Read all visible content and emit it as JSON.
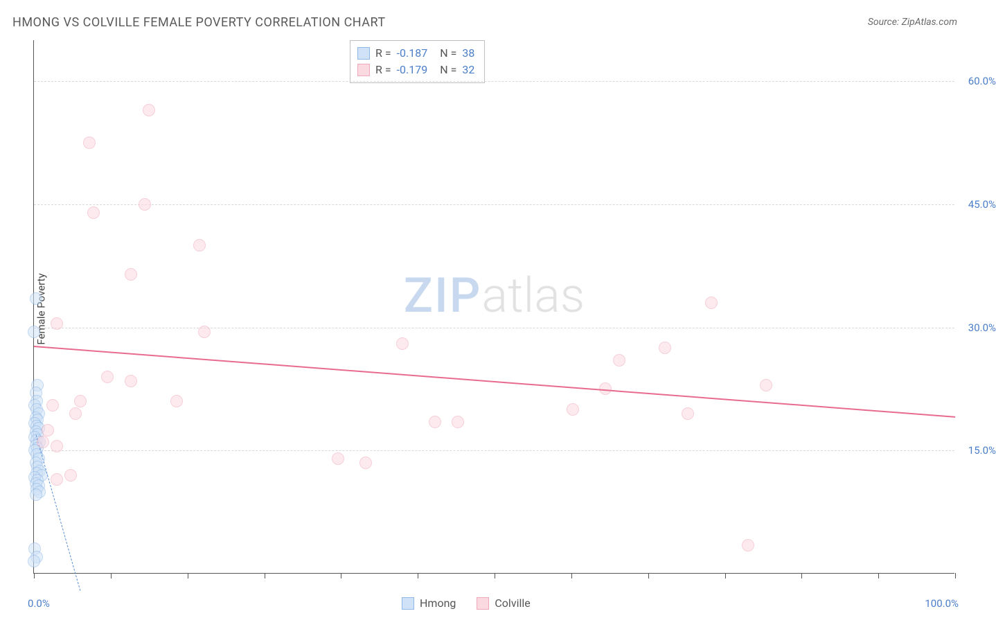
{
  "title": "HMONG VS COLVILLE FEMALE POVERTY CORRELATION CHART",
  "source": "Source: ZipAtlas.com",
  "y_axis_label": "Female Poverty",
  "watermark": {
    "part1": "ZIP",
    "part2": "atlas"
  },
  "chart": {
    "type": "scatter",
    "background_color": "#ffffff",
    "grid_color": "#d8d8d8",
    "axis_color": "#555555",
    "label_color": "#4a7ec9",
    "title_color": "#5a5a5a",
    "title_fontsize": 18,
    "label_fontsize": 15,
    "xlim": [
      0,
      100
    ],
    "ylim": [
      0,
      65
    ],
    "x_ticks": [
      0,
      8.33,
      16.67,
      25,
      33.33,
      41.67,
      50,
      58.33,
      66.67,
      75,
      83.33,
      91.67,
      100
    ],
    "x_tick_labels": {
      "min": "0.0%",
      "max": "100.0%"
    },
    "y_gridlines": [
      15,
      30,
      45,
      60
    ],
    "y_tick_labels": [
      "15.0%",
      "30.0%",
      "45.0%",
      "60.0%"
    ],
    "marker_radius": 9,
    "marker_border_width": 1.5,
    "series": [
      {
        "name": "Hmong",
        "fill": "#cfe2f7",
        "stroke": "#8fb8e6",
        "fill_opacity": 0.55,
        "R": "-0.187",
        "N": "38",
        "trend": {
          "x1": 0.2,
          "y1": 17.0,
          "x2": 5.0,
          "y2": -2.0,
          "color": "#5b8fd1",
          "dash": true,
          "width": 1.5
        },
        "points": [
          [
            0.2,
            33.5
          ],
          [
            0.0,
            29.5
          ],
          [
            0.4,
            23.0
          ],
          [
            0.2,
            22.0
          ],
          [
            0.3,
            21.0
          ],
          [
            0.1,
            20.5
          ],
          [
            0.3,
            20.0
          ],
          [
            0.5,
            19.5
          ],
          [
            0.2,
            19.0
          ],
          [
            0.4,
            18.7
          ],
          [
            0.1,
            18.3
          ],
          [
            0.3,
            18.0
          ],
          [
            0.5,
            17.7
          ],
          [
            0.2,
            17.3
          ],
          [
            0.4,
            17.0
          ],
          [
            0.1,
            16.6
          ],
          [
            0.3,
            16.3
          ],
          [
            0.6,
            16.0
          ],
          [
            0.2,
            15.6
          ],
          [
            0.4,
            15.3
          ],
          [
            0.1,
            15.0
          ],
          [
            0.3,
            14.5
          ],
          [
            0.5,
            14.0
          ],
          [
            0.2,
            13.5
          ],
          [
            0.4,
            13.0
          ],
          [
            0.6,
            12.5
          ],
          [
            0.3,
            12.2
          ],
          [
            0.8,
            12.0
          ],
          [
            0.1,
            11.7
          ],
          [
            0.4,
            11.4
          ],
          [
            0.2,
            11.0
          ],
          [
            0.5,
            10.7
          ],
          [
            0.3,
            10.3
          ],
          [
            0.6,
            10.0
          ],
          [
            0.2,
            9.6
          ],
          [
            0.1,
            3.0
          ],
          [
            0.3,
            2.0
          ],
          [
            0.0,
            1.5
          ]
        ]
      },
      {
        "name": "Colville",
        "fill": "#fad9e1",
        "stroke": "#f0a8ba",
        "fill_opacity": 0.55,
        "R": "-0.179",
        "N": "32",
        "trend": {
          "x1": 0,
          "y1": 27.8,
          "x2": 100,
          "y2": 19.2,
          "color": "#e86b8f",
          "dash": false,
          "width": 2
        },
        "points": [
          [
            12.5,
            56.5
          ],
          [
            6.0,
            52.5
          ],
          [
            12.0,
            45.0
          ],
          [
            6.5,
            44.0
          ],
          [
            18.0,
            40.0
          ],
          [
            10.5,
            36.5
          ],
          [
            73.5,
            33.0
          ],
          [
            2.5,
            30.5
          ],
          [
            18.5,
            29.5
          ],
          [
            40.0,
            28.0
          ],
          [
            68.5,
            27.5
          ],
          [
            63.5,
            26.0
          ],
          [
            8.0,
            24.0
          ],
          [
            10.5,
            23.5
          ],
          [
            79.5,
            23.0
          ],
          [
            62.0,
            22.5
          ],
          [
            15.5,
            21.0
          ],
          [
            5.0,
            21.0
          ],
          [
            2.0,
            20.5
          ],
          [
            58.5,
            20.0
          ],
          [
            4.5,
            19.5
          ],
          [
            71.0,
            19.5
          ],
          [
            43.5,
            18.5
          ],
          [
            46.0,
            18.5
          ],
          [
            1.5,
            17.5
          ],
          [
            1.0,
            16.0
          ],
          [
            2.5,
            15.5
          ],
          [
            33.0,
            14.0
          ],
          [
            36.0,
            13.5
          ],
          [
            4.0,
            12.0
          ],
          [
            2.5,
            11.5
          ],
          [
            77.5,
            3.5
          ]
        ]
      }
    ]
  }
}
